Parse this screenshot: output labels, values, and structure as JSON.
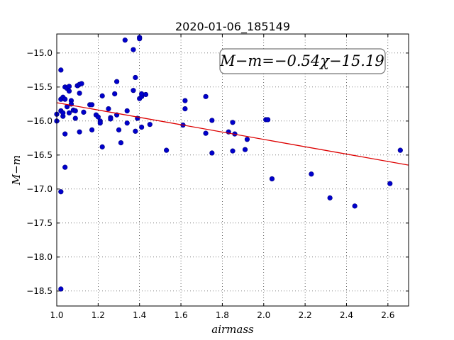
{
  "chart_data": {
    "type": "scatter",
    "title": "2020-01-06_185149",
    "xlabel": "airmass",
    "ylabel": "M−m",
    "xlim": [
      1.0,
      2.7
    ],
    "ylim": [
      -18.72,
      -14.72
    ],
    "y_inverted": true,
    "grid": true,
    "x_ticks": [
      1.0,
      1.2,
      1.4,
      1.6,
      1.8,
      2.0,
      2.2,
      2.4,
      2.6
    ],
    "x_tick_labels": [
      "1.0",
      "1.2",
      "1.4",
      "1.6",
      "1.8",
      "2.0",
      "2.2",
      "2.4",
      "2.6"
    ],
    "y_ticks": [
      -15.0,
      -15.5,
      -16.0,
      -16.5,
      -17.0,
      -17.5,
      -18.0,
      -18.5
    ],
    "y_tick_labels": [
      "−15.0",
      "−15.5",
      "−16.0",
      "−16.5",
      "−17.0",
      "−17.5",
      "−18.0",
      "−18.5"
    ],
    "annotation": "M−m=−0.54χ−15.19",
    "annotation_position": "top-right",
    "marker_color": "#0000cc",
    "marker_edge_color": "#000080",
    "fit_color": "#dd0000",
    "fit": {
      "slope": -0.54,
      "intercept": -15.19,
      "x": [
        1.0,
        2.7
      ]
    },
    "points": [
      [
        1.0,
        -15.9
      ],
      [
        1.0,
        -16.0
      ],
      [
        1.02,
        -15.25
      ],
      [
        1.02,
        -15.85
      ],
      [
        1.02,
        -15.68
      ],
      [
        1.02,
        -17.04
      ],
      [
        1.02,
        -18.47
      ],
      [
        1.03,
        -15.65
      ],
      [
        1.03,
        -15.93
      ],
      [
        1.03,
        -15.88
      ],
      [
        1.04,
        -15.5
      ],
      [
        1.04,
        -15.68
      ],
      [
        1.04,
        -16.19
      ],
      [
        1.04,
        -16.68
      ],
      [
        1.05,
        -15.79
      ],
      [
        1.05,
        -15.52
      ],
      [
        1.06,
        -15.56
      ],
      [
        1.06,
        -15.49
      ],
      [
        1.06,
        -15.88
      ],
      [
        1.07,
        -15.7
      ],
      [
        1.07,
        -15.75
      ],
      [
        1.08,
        -15.84
      ],
      [
        1.09,
        -15.85
      ],
      [
        1.09,
        -15.96
      ],
      [
        1.1,
        -15.48
      ],
      [
        1.1,
        -15.48
      ],
      [
        1.11,
        -15.46
      ],
      [
        1.11,
        -15.59
      ],
      [
        1.11,
        -16.16
      ],
      [
        1.12,
        -15.45
      ],
      [
        1.13,
        -15.87
      ],
      [
        1.16,
        -15.76
      ],
      [
        1.17,
        -15.76
      ],
      [
        1.17,
        -16.13
      ],
      [
        1.19,
        -15.91
      ],
      [
        1.2,
        -15.94
      ],
      [
        1.21,
        -16.0
      ],
      [
        1.21,
        -16.03
      ],
      [
        1.22,
        -15.63
      ],
      [
        1.22,
        -16.38
      ],
      [
        1.25,
        -15.82
      ],
      [
        1.26,
        -15.95
      ],
      [
        1.26,
        -15.97
      ],
      [
        1.28,
        -15.6
      ],
      [
        1.29,
        -15.42
      ],
      [
        1.29,
        -15.91
      ],
      [
        1.3,
        -16.13
      ],
      [
        1.31,
        -16.32
      ],
      [
        1.33,
        -14.81
      ],
      [
        1.34,
        -15.85
      ],
      [
        1.34,
        -16.03
      ],
      [
        1.37,
        -14.95
      ],
      [
        1.37,
        -15.55
      ],
      [
        1.38,
        -15.36
      ],
      [
        1.38,
        -16.15
      ],
      [
        1.39,
        -15.96
      ],
      [
        1.4,
        -14.77
      ],
      [
        1.4,
        -14.79
      ],
      [
        1.4,
        -15.67
      ],
      [
        1.41,
        -15.64
      ],
      [
        1.41,
        -15.6
      ],
      [
        1.41,
        -16.09
      ],
      [
        1.43,
        -15.61
      ],
      [
        1.45,
        -16.05
      ],
      [
        1.53,
        -16.43
      ],
      [
        1.61,
        -16.06
      ],
      [
        1.62,
        -15.7
      ],
      [
        1.62,
        -15.82
      ],
      [
        1.72,
        -16.18
      ],
      [
        1.72,
        -15.64
      ],
      [
        1.75,
        -15.99
      ],
      [
        1.75,
        -16.47
      ],
      [
        1.83,
        -16.16
      ],
      [
        1.85,
        -16.02
      ],
      [
        1.85,
        -16.44
      ],
      [
        1.86,
        -16.19
      ],
      [
        1.91,
        -16.42
      ],
      [
        1.92,
        -16.27
      ],
      [
        2.01,
        -15.98
      ],
      [
        2.02,
        -15.98
      ],
      [
        2.04,
        -16.85
      ],
      [
        2.23,
        -16.78
      ],
      [
        2.32,
        -17.13
      ],
      [
        2.44,
        -17.25
      ],
      [
        2.61,
        -16.92
      ],
      [
        2.66,
        -16.43
      ]
    ]
  }
}
